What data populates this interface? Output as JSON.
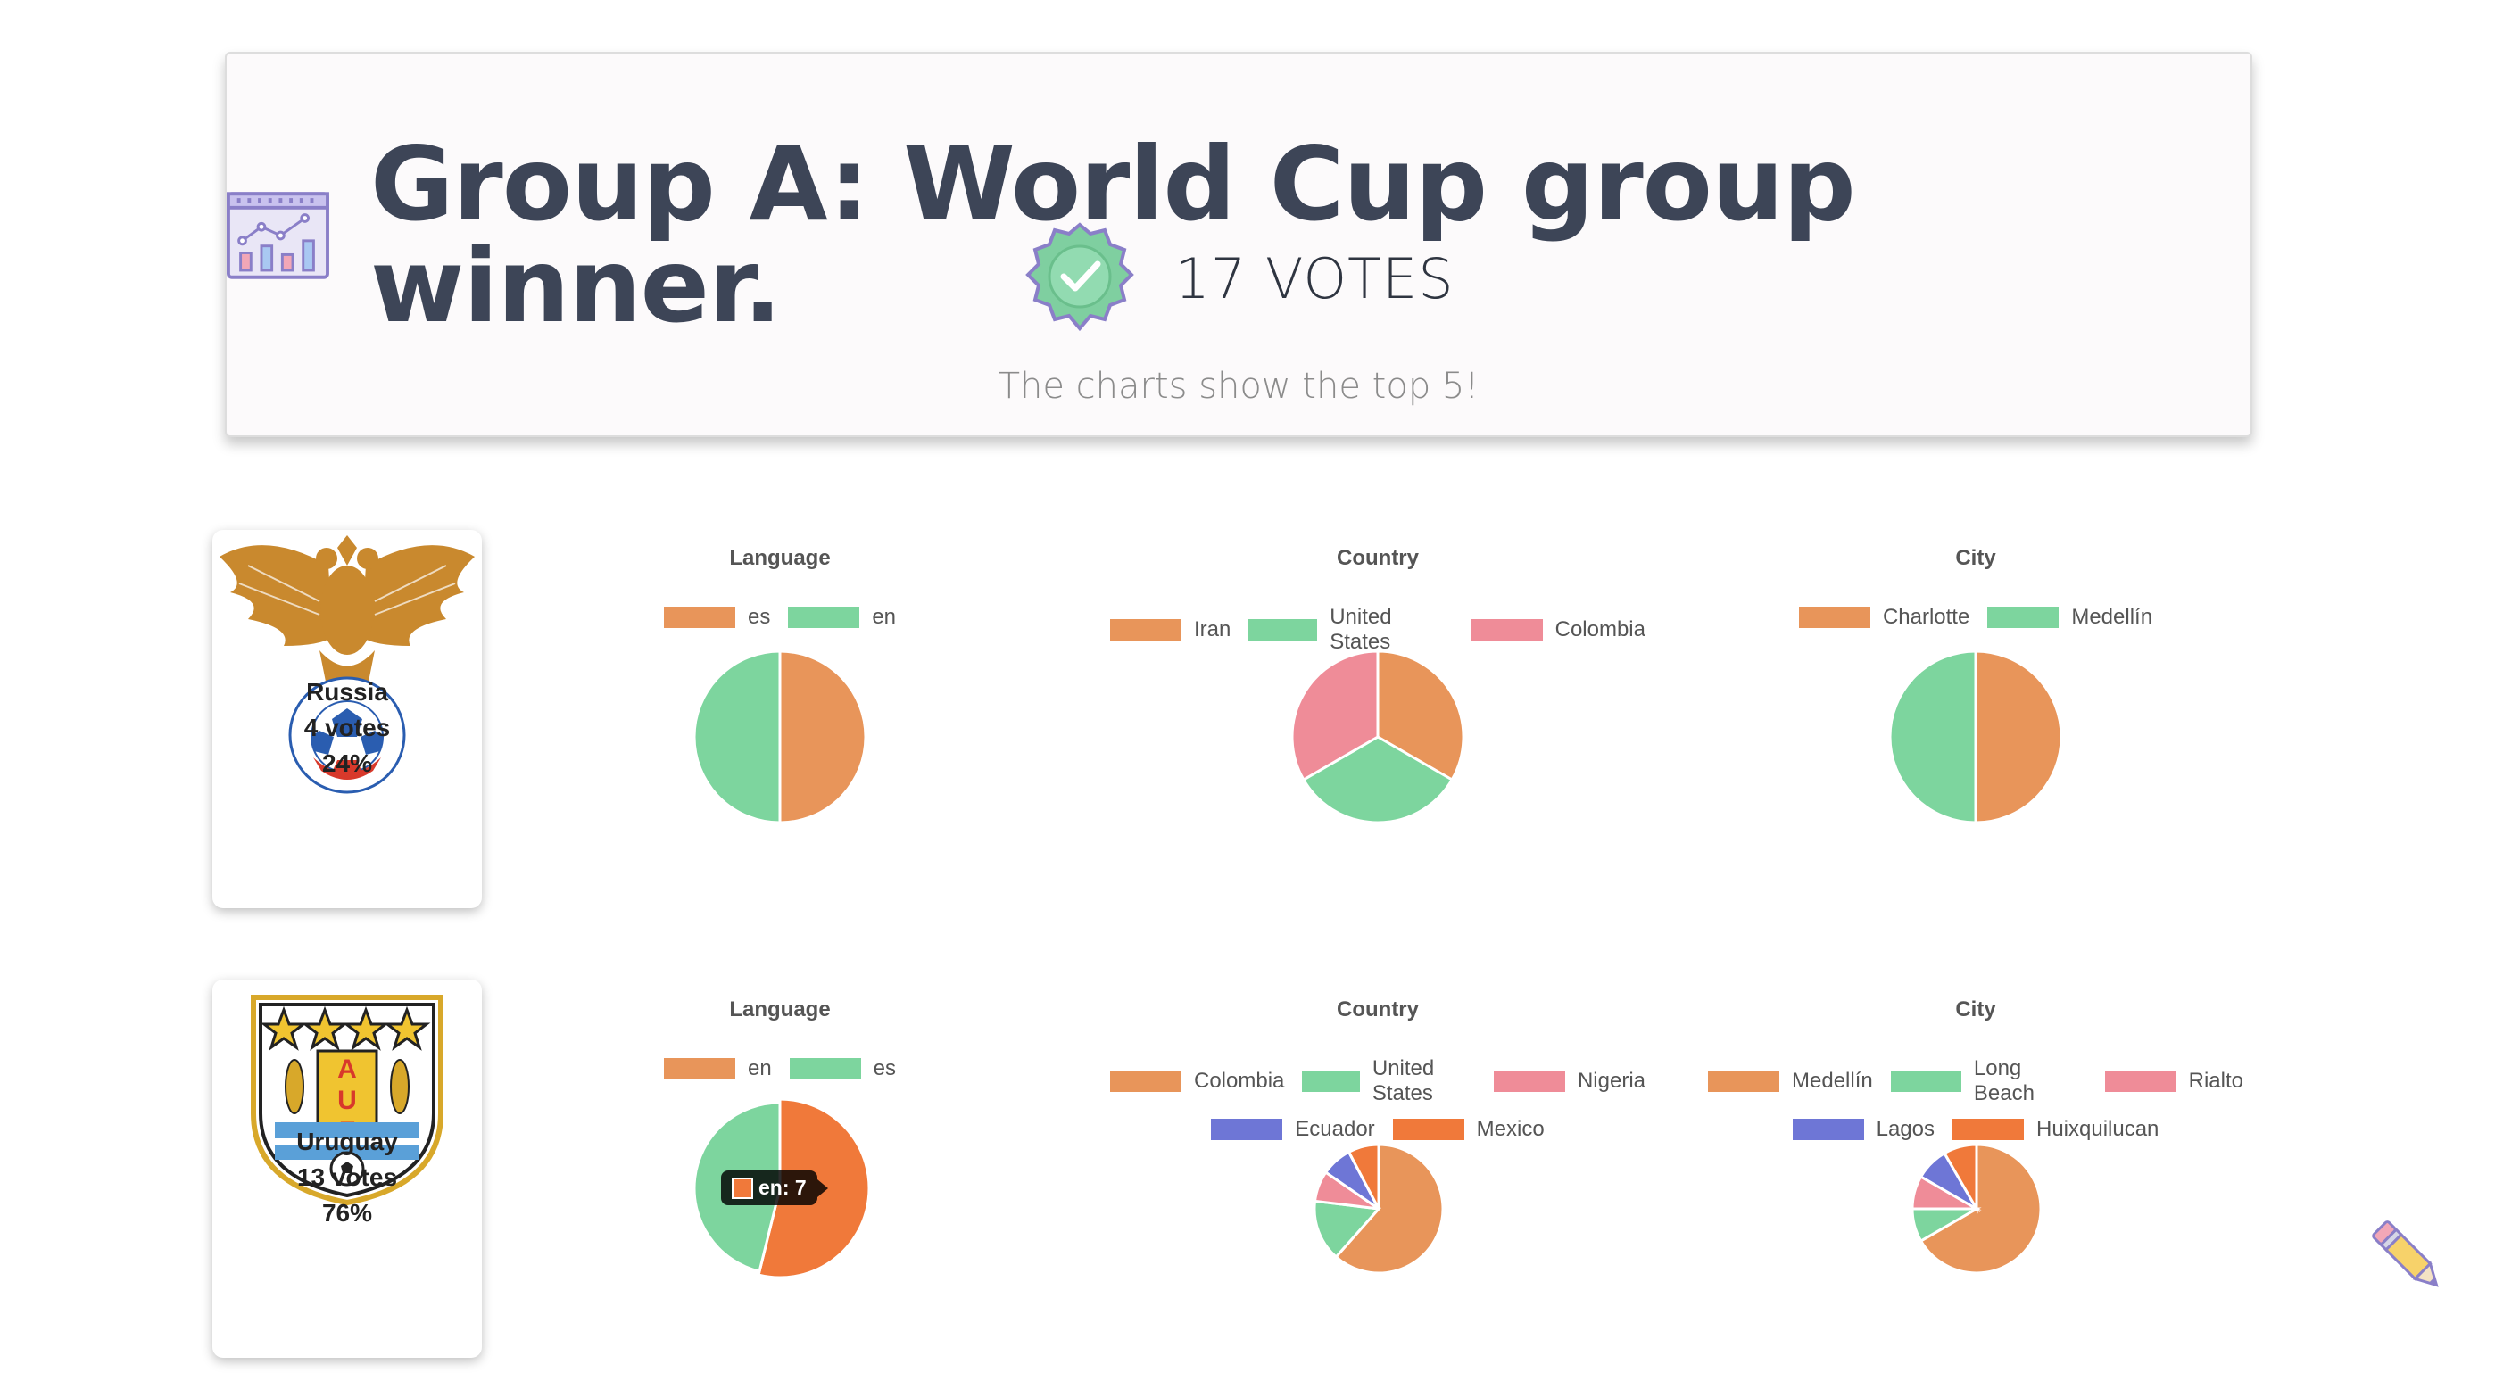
{
  "header": {
    "title": "Group A: World Cup group winner.",
    "votes": "17 VOTES",
    "subtitle": "The charts show the top 5!",
    "title_icon": "chart-calendar-icon",
    "badge_icon": "verified-badge-icon"
  },
  "palette": {
    "orange": "#e8955a",
    "green": "#7dd59e",
    "pink": "#ef8c98",
    "purple": "#6e76d6",
    "orange_bright": "#f0793a"
  },
  "teams": [
    {
      "name": "Russia",
      "votes": "4 votes",
      "pct": "24%",
      "logo_icon": "russia-football-union-crest-icon",
      "charts": [
        {
          "title": "Language",
          "legend": [
            [
              "es",
              "#e8955a"
            ],
            [
              "en",
              "#7dd59e"
            ]
          ],
          "values": [
            2,
            2
          ]
        },
        {
          "title": "Country",
          "legend": [
            [
              "Iran",
              "#e8955a"
            ],
            [
              "United States",
              "#7dd59e"
            ],
            [
              "Colombia",
              "#ef8c98"
            ]
          ],
          "values": [
            1,
            1,
            1
          ]
        },
        {
          "title": "City",
          "legend": [
            [
              "Charlotte",
              "#e8955a"
            ],
            [
              "Medellín",
              "#7dd59e"
            ]
          ],
          "values": [
            1,
            1
          ]
        }
      ]
    },
    {
      "name": "Uruguay",
      "votes": "13 votes",
      "pct": "76%",
      "logo_icon": "uruguay-auf-crest-icon",
      "charts": [
        {
          "title": "Language",
          "legend": [
            [
              "en",
              "#e8955a"
            ],
            [
              "es",
              "#7dd59e"
            ]
          ],
          "values": [
            7,
            6
          ],
          "highlight": 0,
          "tooltip": "en: 7"
        },
        {
          "title": "Country",
          "legend": [
            [
              "Colombia",
              "#e8955a"
            ],
            [
              "United States",
              "#7dd59e"
            ],
            [
              "Nigeria",
              "#ef8c98"
            ],
            [
              "Ecuador",
              "#6e76d6"
            ],
            [
              "Mexico",
              "#f0793a"
            ]
          ],
          "values": [
            8,
            2,
            1,
            1,
            1
          ]
        },
        {
          "title": "City",
          "legend": [
            [
              "Medellín",
              "#e8955a"
            ],
            [
              "Long Beach",
              "#7dd59e"
            ],
            [
              "Rialto",
              "#ef8c98"
            ],
            [
              "Lagos",
              "#6e76d6"
            ],
            [
              "Huixquilucan",
              "#f0793a"
            ]
          ],
          "values": [
            8,
            1,
            1,
            1,
            1
          ]
        }
      ]
    }
  ],
  "edit_icon": "pencil-icon"
}
